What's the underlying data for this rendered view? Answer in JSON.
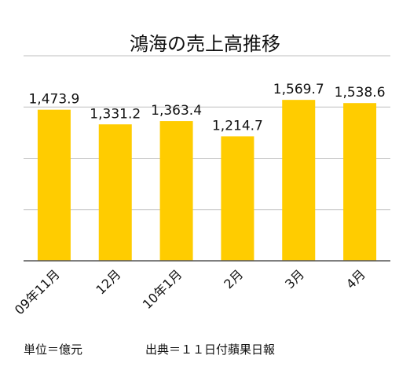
{
  "chart_data": {
    "type": "bar",
    "title": "鴻海の売上高推移",
    "categories": [
      "09年11月",
      "12月",
      "10年1月",
      "2月",
      "3月",
      "4月"
    ],
    "values": [
      1473.9,
      1331.2,
      1363.4,
      1214.7,
      1569.7,
      1538.6
    ],
    "value_labels": [
      "1,473.9",
      "1,331.2",
      "1,363.4",
      "1,214.7",
      "1,569.7",
      "1,538.6"
    ],
    "ylim": [
      0,
      2000
    ],
    "y_gridlines": [
      500,
      1000,
      1500,
      2000
    ],
    "grid": true,
    "legend": "none",
    "bar_color": "#ffcc00",
    "grid_color": "#bfbfbf",
    "axis_color": "#555555"
  },
  "footer": {
    "unit": "単位＝億元",
    "source": "出典＝１１日付蘋果日報"
  }
}
